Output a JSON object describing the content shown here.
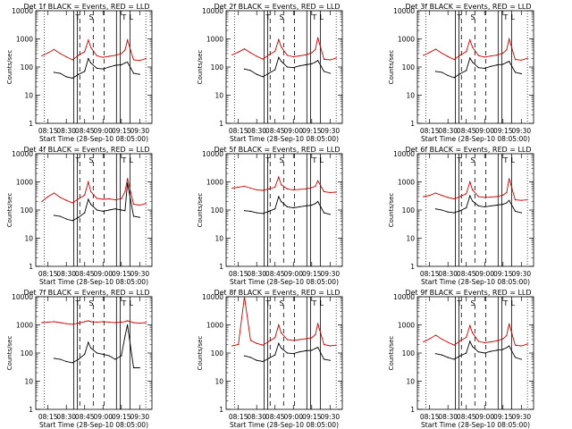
{
  "ylabel": "Counts/sec",
  "xlabel": "Start Time (28-Sep-10 08:05:00)",
  "x_ticks": [
    "08:15",
    "08:30",
    "08:45",
    "09:00",
    "09:15",
    "09:30"
  ],
  "y_ticks": [
    "1",
    "10",
    "100",
    "1000",
    "10000"
  ],
  "colors": {
    "events": "#000000",
    "lld": "#cc0000",
    "background": "#ffffff"
  },
  "chart_data": [
    {
      "type": "line",
      "title": "Det 1f BLACK = Events, RED = LLD",
      "xlabel": "Start Time (28-Sep-10 08:05:00)",
      "ylabel": "Counts/sec",
      "log_y": true,
      "ylim": [
        1,
        10000
      ],
      "x": [
        "08:10",
        "08:15",
        "08:20",
        "08:25",
        "08:30",
        "08:35",
        "08:40",
        "08:45",
        "08:48",
        "08:50",
        "08:55",
        "09:00",
        "09:05",
        "09:10",
        "09:15",
        "09:18",
        "09:20",
        "09:25",
        "09:30",
        "09:35"
      ],
      "series": [
        {
          "name": "Events",
          "color": "#000000",
          "values": [
            null,
            null,
            65,
            60,
            45,
            40,
            55,
            70,
            200,
            140,
            90,
            85,
            100,
            115,
            120,
            140,
            150,
            60,
            55,
            null
          ]
        },
        {
          "name": "LLD",
          "color": "#cc0000",
          "values": [
            250,
            320,
            420,
            300,
            230,
            180,
            260,
            350,
            900,
            500,
            250,
            220,
            240,
            260,
            300,
            400,
            900,
            180,
            170,
            200
          ]
        }
      ]
    },
    {
      "type": "line",
      "title": "Det 2f BLACK = Events, RED = LLD",
      "xlabel": "Start Time (28-Sep-10 08:05:00)",
      "ylabel": "Counts/sec",
      "log_y": true,
      "ylim": [
        1,
        10000
      ],
      "x": [
        "08:10",
        "08:15",
        "08:20",
        "08:25",
        "08:30",
        "08:35",
        "08:40",
        "08:45",
        "08:48",
        "08:50",
        "08:55",
        "09:00",
        "09:05",
        "09:10",
        "09:15",
        "09:18",
        "09:20",
        "09:25",
        "09:30",
        "09:35"
      ],
      "series": [
        {
          "name": "Events",
          "color": "#000000",
          "values": [
            null,
            null,
            85,
            75,
            55,
            45,
            60,
            80,
            220,
            160,
            100,
            95,
            110,
            120,
            130,
            150,
            170,
            70,
            60,
            null
          ]
        },
        {
          "name": "LLD",
          "color": "#cc0000",
          "values": [
            270,
            340,
            440,
            320,
            240,
            190,
            270,
            360,
            950,
            520,
            260,
            230,
            250,
            270,
            320,
            420,
            1100,
            190,
            180,
            210
          ]
        }
      ]
    },
    {
      "type": "line",
      "title": "Det 3f BLACK = Events, RED = LLD",
      "xlabel": "Start Time (28-Sep-10 08:05:00)",
      "ylabel": "Counts/sec",
      "log_y": true,
      "ylim": [
        1,
        10000
      ],
      "x": [
        "08:10",
        "08:15",
        "08:20",
        "08:25",
        "08:30",
        "08:35",
        "08:40",
        "08:45",
        "08:48",
        "08:50",
        "08:55",
        "09:00",
        "09:05",
        "09:10",
        "09:15",
        "09:18",
        "09:20",
        "09:25",
        "09:30",
        "09:35"
      ],
      "series": [
        {
          "name": "Events",
          "color": "#000000",
          "values": [
            null,
            null,
            70,
            65,
            50,
            42,
            58,
            75,
            210,
            150,
            95,
            90,
            105,
            118,
            125,
            145,
            160,
            65,
            58,
            null
          ]
        },
        {
          "name": "LLD",
          "color": "#cc0000",
          "values": [
            260,
            330,
            430,
            310,
            235,
            185,
            265,
            355,
            920,
            510,
            255,
            225,
            245,
            265,
            310,
            410,
            1000,
            185,
            175,
            205
          ]
        }
      ]
    },
    {
      "type": "line",
      "title": "Det 4f BLACK = Events, RED = LLD",
      "xlabel": "Start Time (28-Sep-10 08:05:00)",
      "ylabel": "Counts/sec",
      "log_y": true,
      "ylim": [
        1,
        10000
      ],
      "x": [
        "08:10",
        "08:15",
        "08:20",
        "08:25",
        "08:30",
        "08:35",
        "08:40",
        "08:45",
        "08:48",
        "08:50",
        "08:55",
        "09:00",
        "09:05",
        "09:10",
        "09:15",
        "09:18",
        "09:20",
        "09:25",
        "09:30",
        "09:35"
      ],
      "series": [
        {
          "name": "Events",
          "color": "#000000",
          "values": [
            null,
            null,
            65,
            60,
            48,
            42,
            55,
            80,
            240,
            160,
            100,
            90,
            100,
            110,
            100,
            95,
            900,
            60,
            55,
            null
          ]
        },
        {
          "name": "LLD",
          "color": "#cc0000",
          "values": [
            200,
            300,
            400,
            280,
            220,
            180,
            250,
            340,
            1000,
            450,
            260,
            240,
            250,
            230,
            250,
            450,
            1300,
            160,
            150,
            170
          ]
        }
      ]
    },
    {
      "type": "line",
      "title": "Det 5f BLACK = Events, RED = LLD",
      "xlabel": "Start Time (28-Sep-10 08:05:00)",
      "ylabel": "Counts/sec",
      "log_y": true,
      "ylim": [
        1,
        10000
      ],
      "x": [
        "08:10",
        "08:15",
        "08:20",
        "08:25",
        "08:30",
        "08:35",
        "08:40",
        "08:45",
        "08:48",
        "08:50",
        "08:55",
        "09:00",
        "09:05",
        "09:10",
        "09:15",
        "09:18",
        "09:20",
        "09:25",
        "09:30",
        "09:35"
      ],
      "series": [
        {
          "name": "Events",
          "color": "#000000",
          "values": [
            null,
            null,
            95,
            90,
            80,
            75,
            90,
            110,
            300,
            200,
            130,
            120,
            130,
            140,
            150,
            170,
            200,
            80,
            70,
            null
          ]
        },
        {
          "name": "LLD",
          "color": "#cc0000",
          "values": [
            600,
            650,
            700,
            600,
            520,
            500,
            560,
            650,
            1500,
            800,
            560,
            520,
            540,
            560,
            620,
            700,
            1100,
            450,
            420,
            430
          ]
        }
      ]
    },
    {
      "type": "line",
      "title": "Det 6f BLACK = Events, RED = LLD",
      "xlabel": "Start Time (28-Sep-10 08:05:00)",
      "ylabel": "Counts/sec",
      "log_y": true,
      "ylim": [
        1,
        10000
      ],
      "x": [
        "08:10",
        "08:15",
        "08:20",
        "08:25",
        "08:30",
        "08:35",
        "08:40",
        "08:45",
        "08:48",
        "08:50",
        "08:55",
        "09:00",
        "09:05",
        "09:10",
        "09:15",
        "09:18",
        "09:20",
        "09:25",
        "09:30",
        "09:35"
      ],
      "series": [
        {
          "name": "Events",
          "color": "#000000",
          "values": [
            null,
            null,
            110,
            100,
            85,
            80,
            95,
            120,
            320,
            210,
            140,
            130,
            140,
            150,
            160,
            180,
            220,
            90,
            80,
            null
          ]
        },
        {
          "name": "LLD",
          "color": "#cc0000",
          "values": [
            300,
            330,
            400,
            330,
            280,
            250,
            300,
            380,
            1000,
            520,
            300,
            280,
            290,
            300,
            340,
            420,
            1300,
            230,
            220,
            230
          ]
        }
      ]
    },
    {
      "type": "line",
      "title": "Det 7f BLACK = Events, RED = LLD",
      "xlabel": "Start Time (28-Sep-10 08:05:00)",
      "ylabel": "Counts/sec",
      "log_y": true,
      "ylim": [
        1,
        10000
      ],
      "x": [
        "08:10",
        "08:15",
        "08:20",
        "08:25",
        "08:30",
        "08:35",
        "08:40",
        "08:45",
        "08:48",
        "08:50",
        "08:55",
        "09:00",
        "09:05",
        "09:10",
        "09:15",
        "09:18",
        "09:20",
        "09:25",
        "09:30",
        "09:35"
      ],
      "series": [
        {
          "name": "Events",
          "color": "#000000",
          "values": [
            null,
            null,
            65,
            60,
            50,
            45,
            60,
            90,
            240,
            150,
            100,
            90,
            80,
            60,
            80,
            400,
            1000,
            30,
            30,
            null
          ]
        },
        {
          "name": "LLD",
          "color": "#cc0000",
          "values": [
            1200,
            1250,
            1300,
            1200,
            1100,
            1050,
            1150,
            1300,
            1400,
            1300,
            1250,
            1300,
            1250,
            1200,
            1250,
            1300,
            1400,
            1200,
            1150,
            1200
          ]
        }
      ]
    },
    {
      "type": "line",
      "title": "Det 8f BLACK = Events, RED = LLD",
      "xlabel": "Start Time (28-Sep-10 08:05:00)",
      "ylabel": "Counts/sec",
      "log_y": true,
      "ylim": [
        1,
        10000
      ],
      "x": [
        "08:10",
        "08:15",
        "08:20",
        "08:25",
        "08:30",
        "08:35",
        "08:40",
        "08:45",
        "08:48",
        "08:50",
        "08:55",
        "09:00",
        "09:05",
        "09:10",
        "09:15",
        "09:18",
        "09:20",
        "09:25",
        "09:30",
        "09:35"
      ],
      "series": [
        {
          "name": "Events",
          "color": "#000000",
          "values": [
            null,
            null,
            80,
            70,
            55,
            50,
            65,
            85,
            220,
            150,
            100,
            95,
            110,
            120,
            125,
            145,
            160,
            60,
            55,
            null
          ]
        },
        {
          "name": "LLD",
          "color": "#cc0000",
          "values": [
            180,
            200,
            10000,
            280,
            220,
            190,
            260,
            350,
            1000,
            520,
            300,
            280,
            300,
            320,
            350,
            450,
            1100,
            200,
            180,
            190
          ]
        }
      ]
    },
    {
      "type": "line",
      "title": "Det 9f BLACK = Events, RED = LLD",
      "xlabel": "Start Time (28-Sep-10 08:05:00)",
      "ylabel": "Counts/sec",
      "log_y": true,
      "ylim": [
        1,
        10000
      ],
      "x": [
        "08:10",
        "08:15",
        "08:20",
        "08:25",
        "08:30",
        "08:35",
        "08:40",
        "08:45",
        "08:48",
        "08:50",
        "08:55",
        "09:00",
        "09:05",
        "09:10",
        "09:15",
        "09:18",
        "09:20",
        "09:25",
        "09:30",
        "09:35"
      ],
      "series": [
        {
          "name": "Events",
          "color": "#000000",
          "values": [
            null,
            null,
            95,
            85,
            70,
            60,
            80,
            100,
            260,
            170,
            110,
            100,
            115,
            125,
            135,
            155,
            180,
            70,
            60,
            null
          ]
        },
        {
          "name": "LLD",
          "color": "#cc0000",
          "values": [
            250,
            320,
            430,
            310,
            240,
            190,
            270,
            360,
            950,
            520,
            260,
            230,
            250,
            270,
            320,
            420,
            1100,
            190,
            180,
            210
          ]
        }
      ]
    }
  ]
}
